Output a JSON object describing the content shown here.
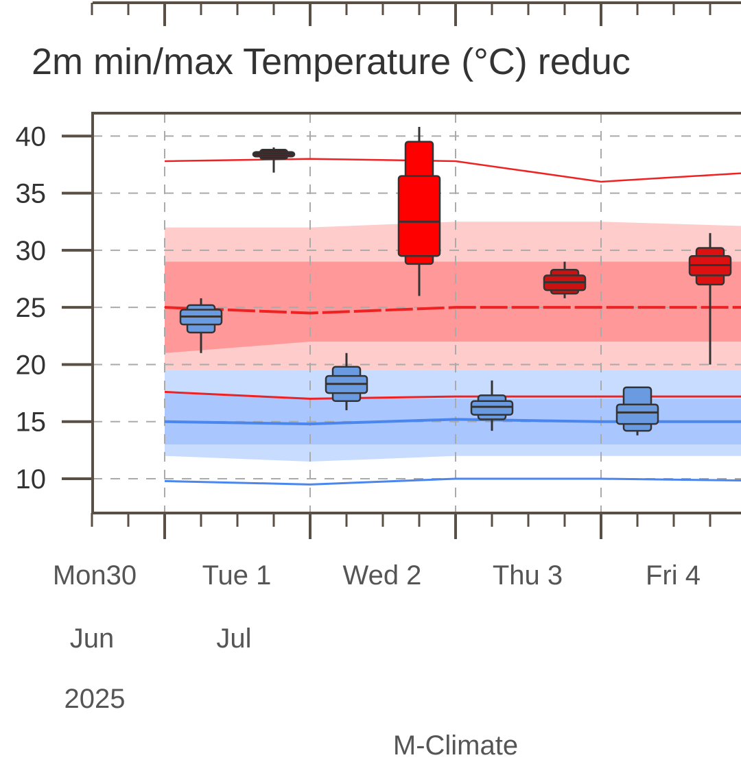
{
  "chart_data": {
    "type": "box",
    "title": "2m min/max Temperature (°C) reduc",
    "footer": "M-Climate",
    "ylim": [
      7,
      42
    ],
    "y_ticks": [
      "10",
      "15",
      "20",
      "25",
      "30",
      "35",
      "40"
    ],
    "y_tick_values": [
      10,
      15,
      20,
      25,
      30,
      35,
      40
    ],
    "grid": true,
    "x_ticks": [
      {
        "day": 0,
        "label": "Mon30",
        "sub1": "Jun",
        "sub2": "2025"
      },
      {
        "day": 1,
        "label": "Tue 1",
        "sub1": "Jul",
        "sub2": ""
      },
      {
        "day": 2,
        "label": "Wed 2",
        "sub1": "",
        "sub2": ""
      },
      {
        "day": 3,
        "label": "Thu 3",
        "sub1": "",
        "sub2": ""
      },
      {
        "day": 4,
        "label": "Fri 4",
        "sub1": "",
        "sub2": ""
      }
    ],
    "climate_bands": {
      "max": {
        "x": [
          1.0,
          2.0,
          3.0,
          4.0,
          4.95
        ],
        "outer_low": [
          19.5,
          19.5,
          19.5,
          19.5,
          19.5
        ],
        "outer_high": [
          32.0,
          32.0,
          32.5,
          32.5,
          32.0
        ],
        "inner_low": [
          21.0,
          22.0,
          22.0,
          22.0,
          22.0
        ],
        "inner_high": [
          29.0,
          29.0,
          29.0,
          29.0,
          29.0
        ],
        "median": [
          25.0,
          24.5,
          25.0,
          25.0,
          25.0
        ],
        "extreme_high": [
          37.8,
          38.0,
          37.8,
          36.0,
          37.0
        ],
        "extreme_low": [
          17.6,
          17.0,
          17.2,
          17.2,
          17.2
        ],
        "band_outer_color": "#ffcccc",
        "band_inner_color": "#ff9999",
        "line_color": "#ee2222"
      },
      "min": {
        "x": [
          1.0,
          2.0,
          3.0,
          4.0,
          4.95
        ],
        "outer_low": [
          12.0,
          11.5,
          12.0,
          12.0,
          12.0
        ],
        "outer_high": [
          19.5,
          19.5,
          19.5,
          19.5,
          19.5
        ],
        "inner_low": [
          13.0,
          13.0,
          13.0,
          13.0,
          13.0
        ],
        "inner_high": [
          17.5,
          17.0,
          17.0,
          17.0,
          17.0
        ],
        "median": [
          15.0,
          14.8,
          15.2,
          15.0,
          15.0
        ],
        "extreme_low": [
          9.8,
          9.5,
          10.0,
          10.0,
          9.8
        ],
        "band_outer_color": "#c8dcff",
        "band_inner_color": "#a9c6ff",
        "line_color": "#4a86ee"
      }
    },
    "series": [
      {
        "name": "max",
        "color": "#ff0000",
        "dark_color": "#b01010",
        "boxes": [
          {
            "x": 1.75,
            "min": 36.8,
            "p10": 38.0,
            "p25": 38.2,
            "median": 38.4,
            "p75": 38.6,
            "p90": 38.8,
            "max": 39.0,
            "color": "#5c1010"
          },
          {
            "x": 2.75,
            "min": 26.0,
            "p10": 28.8,
            "p25": 29.5,
            "median": 32.5,
            "p75": 36.5,
            "p90": 39.5,
            "max": 40.8,
            "color": "#ff0000"
          },
          {
            "x": 3.75,
            "min": 25.8,
            "p10": 26.2,
            "p25": 26.5,
            "median": 27.2,
            "p75": 27.8,
            "p90": 28.3,
            "max": 29.0,
            "color": "#cc1111"
          },
          {
            "x": 4.75,
            "min": 20.0,
            "p10": 27.0,
            "p25": 27.8,
            "median": 28.7,
            "p75": 29.5,
            "p90": 30.2,
            "max": 31.5,
            "color": "#dd1111"
          }
        ]
      },
      {
        "name": "min",
        "color": "#6a9be0",
        "dark_color": "#4477cc",
        "boxes": [
          {
            "x": 1.25,
            "min": 21.0,
            "p10": 22.8,
            "p25": 23.5,
            "median": 24.2,
            "p75": 24.8,
            "p90": 25.2,
            "max": 25.8,
            "color": "#6a9be0"
          },
          {
            "x": 2.25,
            "min": 16.0,
            "p10": 16.8,
            "p25": 17.5,
            "median": 18.3,
            "p75": 19.0,
            "p90": 19.8,
            "max": 21.0,
            "color": "#6a9be0"
          },
          {
            "x": 3.25,
            "min": 14.2,
            "p10": 15.2,
            "p25": 15.6,
            "median": 16.3,
            "p75": 16.8,
            "p90": 17.3,
            "max": 18.6,
            "color": "#6a9be0"
          },
          {
            "x": 4.25,
            "min": 13.8,
            "p10": 14.2,
            "p25": 14.8,
            "median": 15.8,
            "p75": 16.5,
            "p90": 18.0,
            "max": 18.0,
            "color": "#6a9be0"
          }
        ]
      }
    ]
  }
}
